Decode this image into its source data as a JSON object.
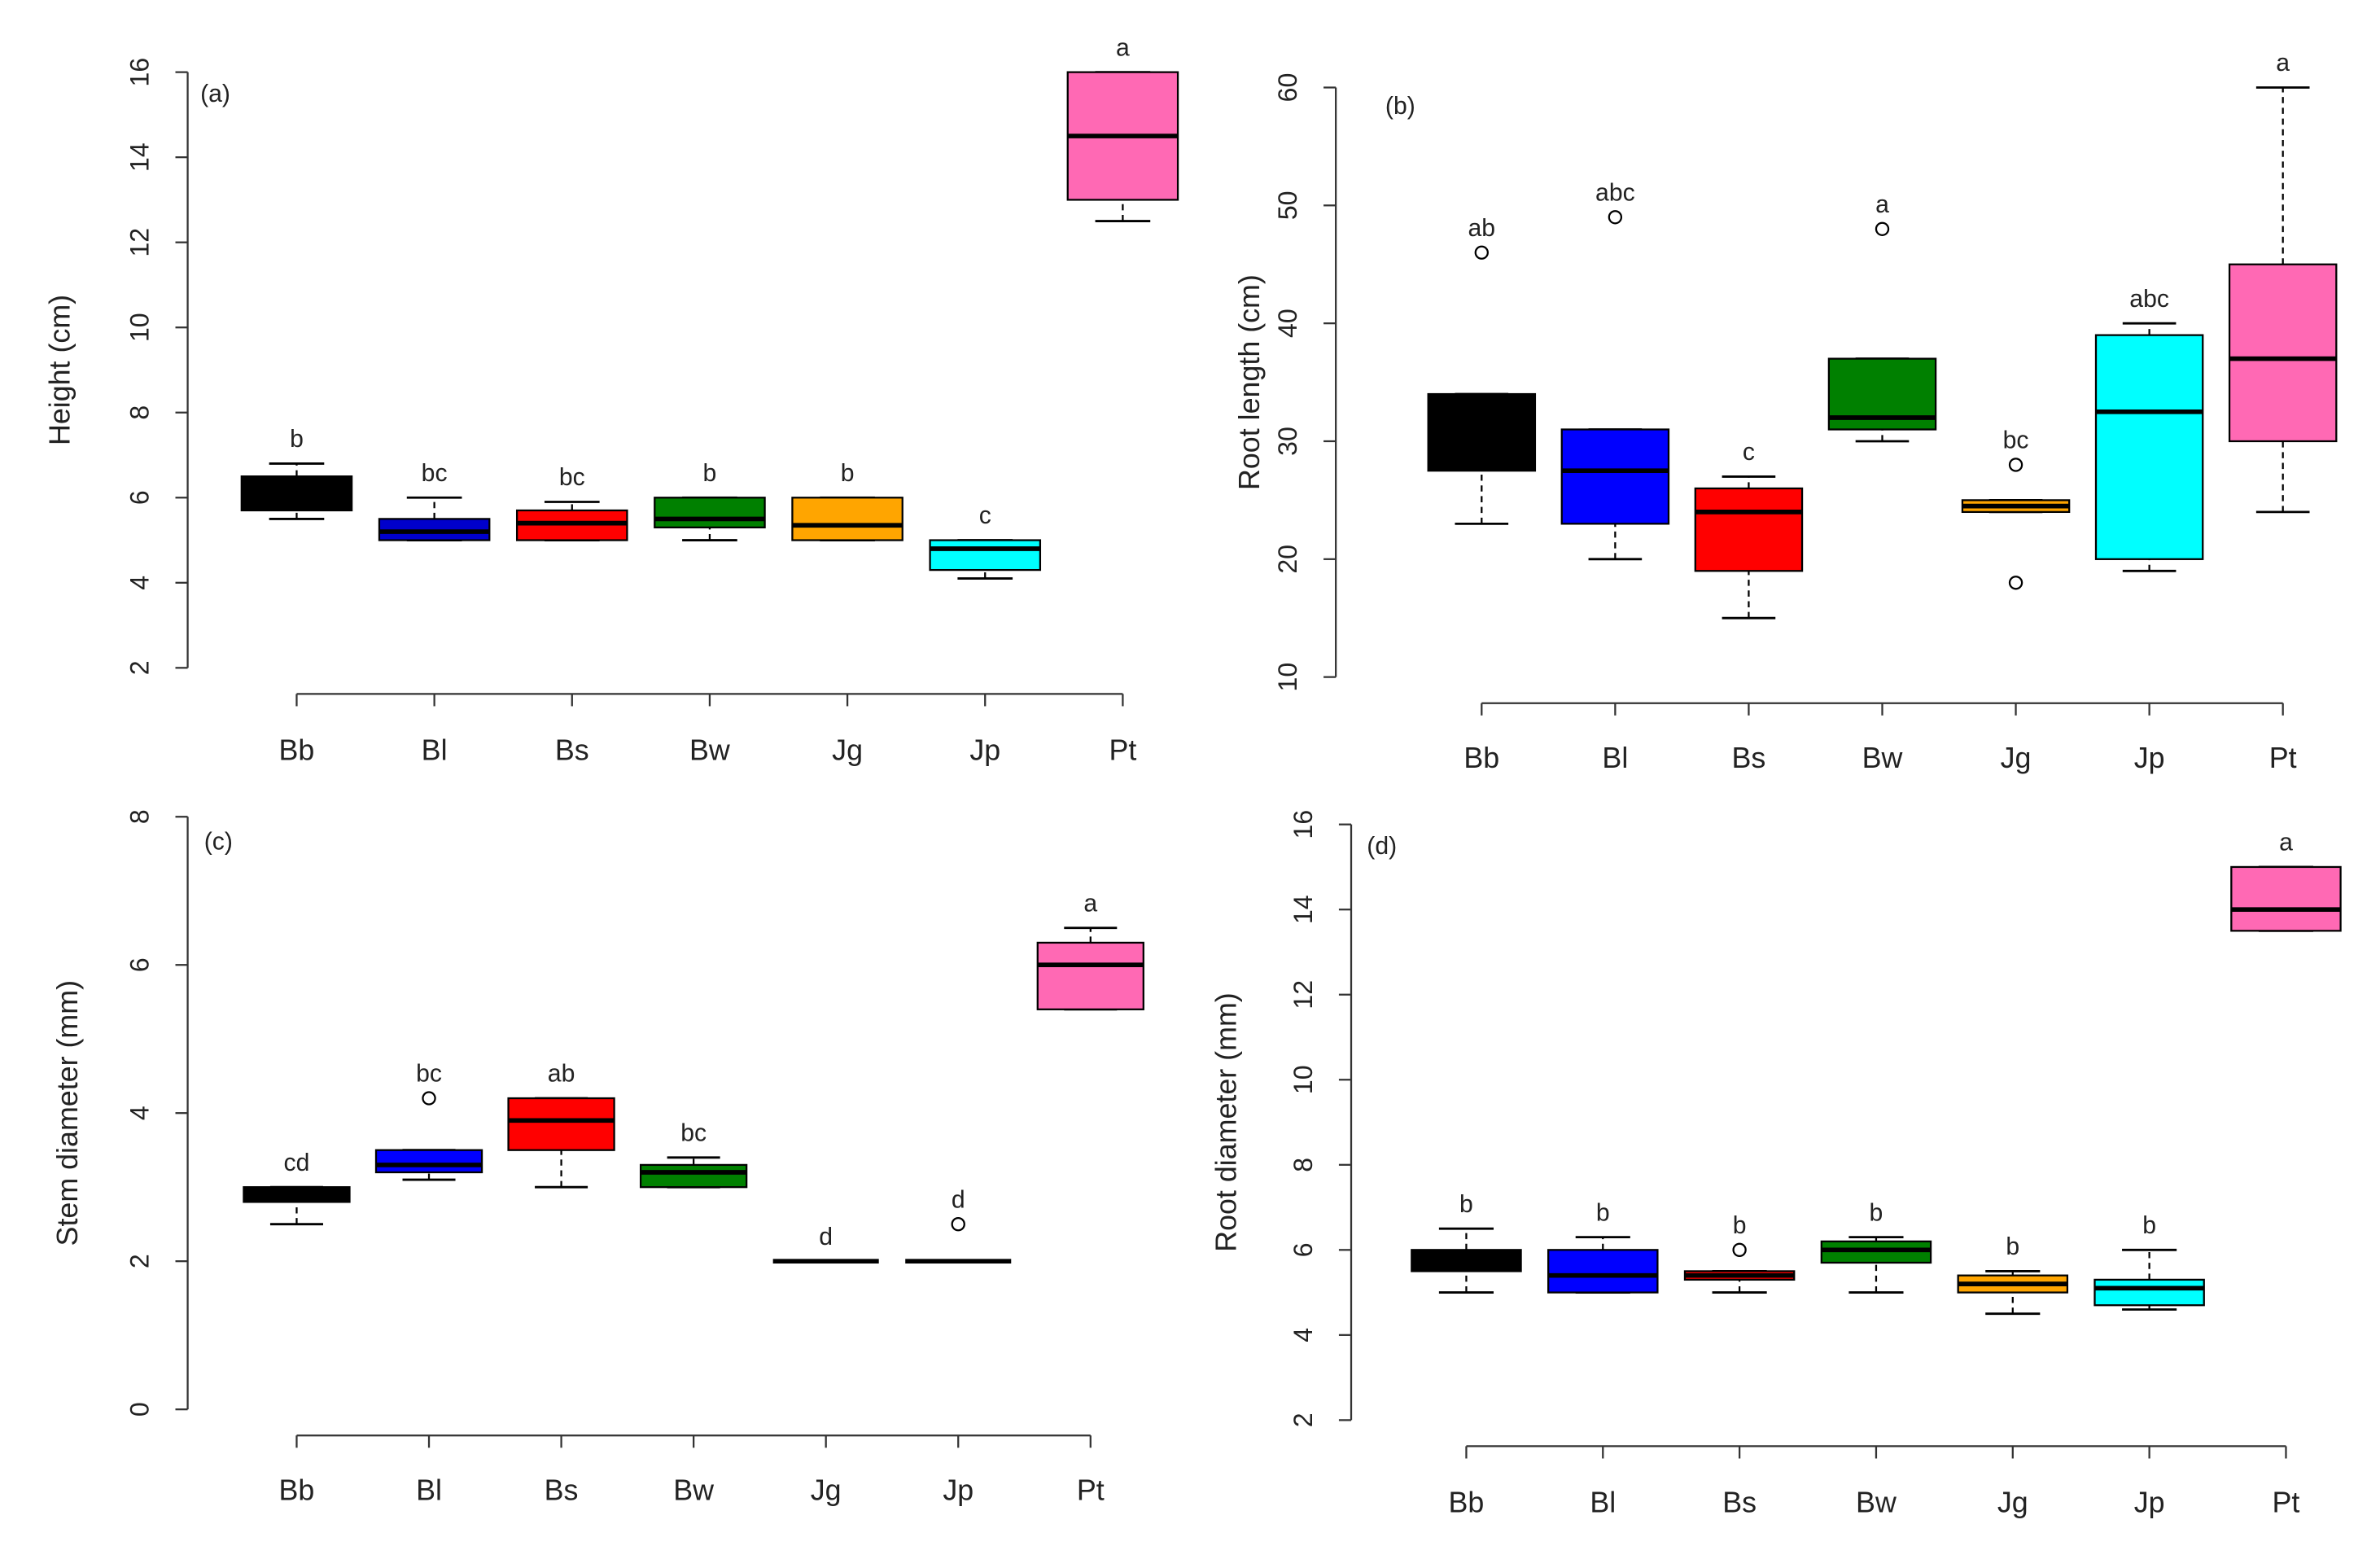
{
  "chart_data": [
    {
      "type": "box",
      "label": "(a)",
      "ylabel": "Height (cm)",
      "categories": [
        "Bb",
        "Bl",
        "Bs",
        "Bw",
        "Jg",
        "Jp",
        "Pt"
      ],
      "colors": [
        "#000000",
        "#0000cc",
        "#ff0000",
        "#008000",
        "#ffa500",
        "#00ffff",
        "#ff69b4"
      ],
      "ylim": [
        2,
        16
      ],
      "yticks": [
        2,
        4,
        6,
        8,
        10,
        12,
        14,
        16
      ],
      "min": [
        5.5,
        5.0,
        5.0,
        5.0,
        5.0,
        4.1,
        12.5
      ],
      "q1": [
        5.7,
        5.0,
        5.0,
        5.3,
        5.0,
        4.3,
        13.0
      ],
      "median": [
        6.0,
        5.2,
        5.4,
        5.5,
        5.35,
        4.8,
        14.5
      ],
      "q3": [
        6.5,
        5.5,
        5.7,
        6.0,
        6.0,
        5.0,
        16.0
      ],
      "max": [
        6.8,
        6.0,
        5.9,
        6.0,
        6.0,
        5.0,
        16.0
      ],
      "outliers": [
        [],
        [],
        [],
        [],
        [],
        [],
        []
      ],
      "letters": [
        "b",
        "bc",
        "bc",
        "b",
        "b",
        "c",
        "a"
      ]
    },
    {
      "type": "box",
      "label": "(b)",
      "ylabel": "Root length (cm)",
      "categories": [
        "Bb",
        "Bl",
        "Bs",
        "Bw",
        "Jg",
        "Jp",
        "Pt"
      ],
      "colors": [
        "#000000",
        "#0000ff",
        "#ff0000",
        "#008000",
        "#ffa500",
        "#00ffff",
        "#ff69b4"
      ],
      "ylim": [
        10,
        60
      ],
      "yticks": [
        10,
        20,
        30,
        40,
        50,
        60
      ],
      "min": [
        23,
        20,
        15,
        30,
        24,
        19,
        24
      ],
      "q1": [
        27.5,
        23,
        19,
        31,
        24,
        20,
        30
      ],
      "median": [
        31,
        27.5,
        24,
        32,
        24.5,
        32.5,
        37
      ],
      "q3": [
        34,
        31,
        26,
        37,
        25,
        39,
        45
      ],
      "max": [
        34,
        31,
        27,
        37,
        25,
        40,
        60
      ],
      "outliers": [
        [
          46
        ],
        [
          49
        ],
        [],
        [
          48
        ],
        [
          18,
          28
        ],
        [],
        []
      ],
      "letters": [
        "ab",
        "abc",
        "c",
        "a",
        "bc",
        "abc",
        "a"
      ]
    },
    {
      "type": "box",
      "label": "(c)",
      "ylabel": "Stem diameter (mm)",
      "categories": [
        "Bb",
        "Bl",
        "Bs",
        "Bw",
        "Jg",
        "Jp",
        "Pt"
      ],
      "colors": [
        "#000000",
        "#0000ff",
        "#ff0000",
        "#008000",
        "#ffa500",
        "#00ffff",
        "#ff69b4"
      ],
      "ylim": [
        0,
        8
      ],
      "yticks": [
        0,
        2,
        4,
        6,
        8
      ],
      "min": [
        2.5,
        3.1,
        3.0,
        3.0,
        2.0,
        2.0,
        5.4
      ],
      "q1": [
        2.8,
        3.2,
        3.5,
        3.0,
        2.0,
        2.0,
        5.4
      ],
      "median": [
        2.9,
        3.3,
        3.9,
        3.2,
        2.0,
        2.0,
        6.0
      ],
      "q3": [
        3.0,
        3.5,
        4.2,
        3.3,
        2.0,
        2.0,
        6.3
      ],
      "max": [
        3.0,
        3.5,
        4.2,
        3.4,
        2.0,
        2.0,
        6.5
      ],
      "outliers": [
        [],
        [
          4.2
        ],
        [],
        [],
        [],
        [
          2.5
        ],
        []
      ],
      "letters": [
        "cd",
        "bc",
        "ab",
        "bc",
        "d",
        "d",
        "a"
      ]
    },
    {
      "type": "box",
      "label": "(d)",
      "ylabel": "Root diameter (mm)",
      "categories": [
        "Bb",
        "Bl",
        "Bs",
        "Bw",
        "Jg",
        "Jp",
        "Pt"
      ],
      "colors": [
        "#000000",
        "#0000ff",
        "#ff0000",
        "#008000",
        "#ffa500",
        "#00ffff",
        "#ff69b4"
      ],
      "ylim": [
        2,
        16
      ],
      "yticks": [
        2,
        4,
        6,
        8,
        10,
        12,
        14,
        16
      ],
      "min": [
        5.0,
        5.0,
        5.0,
        5.0,
        4.5,
        4.6,
        13.5
      ],
      "q1": [
        5.5,
        5.0,
        5.3,
        5.7,
        5.0,
        4.7,
        13.5
      ],
      "median": [
        5.7,
        5.4,
        5.4,
        6.0,
        5.2,
        5.1,
        14.0
      ],
      "q3": [
        6.0,
        6.0,
        5.5,
        6.2,
        5.4,
        5.3,
        15.0
      ],
      "max": [
        6.5,
        6.3,
        5.5,
        6.3,
        5.5,
        6.0,
        15.0
      ],
      "outliers": [
        [],
        [],
        [
          6.0
        ],
        [],
        [],
        [],
        []
      ],
      "letters": [
        "b",
        "b",
        "b",
        "b",
        "b",
        "b",
        "a"
      ]
    }
  ]
}
